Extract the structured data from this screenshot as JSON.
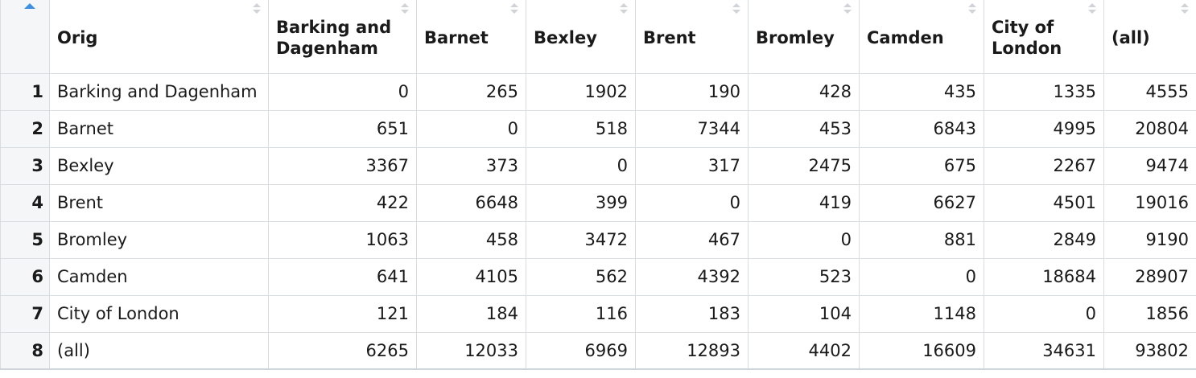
{
  "table": {
    "columns": [
      "Orig",
      "Barking and Dagenham",
      "Barnet",
      "Bexley",
      "Brent",
      "Bromley",
      "Camden",
      "City of London",
      "(all)"
    ],
    "rows": [
      {
        "n": "1",
        "orig": "Barking and Dagenham",
        "values": [
          "0",
          "265",
          "1902",
          "190",
          "428",
          "435",
          "1335",
          "4555"
        ]
      },
      {
        "n": "2",
        "orig": "Barnet",
        "values": [
          "651",
          "0",
          "518",
          "7344",
          "453",
          "6843",
          "4995",
          "20804"
        ]
      },
      {
        "n": "3",
        "orig": "Bexley",
        "values": [
          "3367",
          "373",
          "0",
          "317",
          "2475",
          "675",
          "2267",
          "9474"
        ]
      },
      {
        "n": "4",
        "orig": "Brent",
        "values": [
          "422",
          "6648",
          "399",
          "0",
          "419",
          "6627",
          "4501",
          "19016"
        ]
      },
      {
        "n": "5",
        "orig": "Bromley",
        "values": [
          "1063",
          "458",
          "3472",
          "467",
          "0",
          "881",
          "2849",
          "9190"
        ]
      },
      {
        "n": "6",
        "orig": "Camden",
        "values": [
          "641",
          "4105",
          "562",
          "4392",
          "523",
          "0",
          "18684",
          "28907"
        ]
      },
      {
        "n": "7",
        "orig": "City of London",
        "values": [
          "121",
          "184",
          "116",
          "183",
          "104",
          "1148",
          "0",
          "1856"
        ]
      },
      {
        "n": "8",
        "orig": "(all)",
        "values": [
          "6265",
          "12033",
          "6969",
          "12893",
          "4402",
          "16609",
          "34631",
          "93802"
        ]
      }
    ]
  },
  "colors": {
    "sort_active": "#3d8fe0",
    "sort_inactive": "#d0d4d8",
    "grid_line": "#d8dde2",
    "rownum_bg": "#f5f6f7"
  },
  "icons": {
    "sort_active": "sort-ascending-icon",
    "sort_inactive": "sort-icon"
  }
}
